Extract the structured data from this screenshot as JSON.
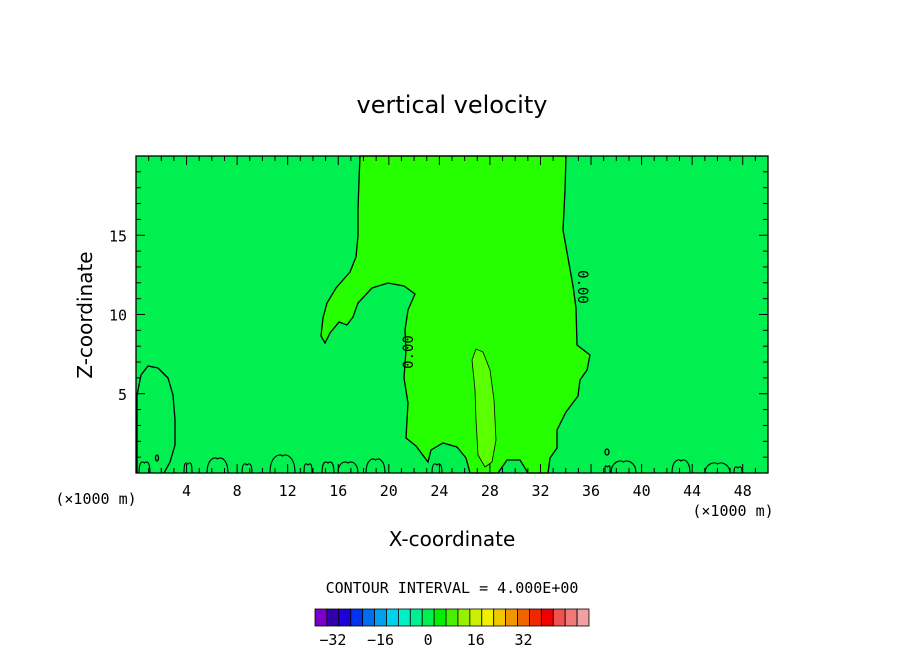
{
  "chart_data": {
    "type": "contour",
    "title": "vertical velocity",
    "xlabel": "X-coordinate",
    "ylabel": "Z-coordinate",
    "x_unit": "(×1000 m)",
    "x_unit_right": "(×1000 m)",
    "xlim": [
      0,
      50
    ],
    "ylim": [
      0,
      20
    ],
    "x_ticks": [
      4,
      8,
      12,
      16,
      20,
      24,
      28,
      32,
      36,
      40,
      44,
      48
    ],
    "y_ticks": [
      5,
      10,
      15
    ],
    "contour_labels": [
      "0.00",
      "0.00"
    ],
    "contour_interval_text": "CONTOUR INTERVAL = 4.000E+00",
    "colorbar": {
      "ticks": [
        -32,
        -16,
        0,
        16,
        32
      ],
      "min": -40,
      "max": 40,
      "interval": 4,
      "colors": [
        "#7a00c8",
        "#3200aa",
        "#1e00d8",
        "#0032f0",
        "#006ef0",
        "#00a0f0",
        "#00d2f0",
        "#00f0c8",
        "#00f096",
        "#00f050",
        "#00f000",
        "#46f000",
        "#96f000",
        "#c8f000",
        "#f0f000",
        "#f0c800",
        "#f09600",
        "#f06400",
        "#f02800",
        "#f00000",
        "#f05050",
        "#f07878",
        "#f0a0a0"
      ]
    },
    "fill_colors": {
      "background": "#00f050",
      "positive_zone": "#26ff00",
      "strong_updraft": "#5aff00"
    }
  }
}
